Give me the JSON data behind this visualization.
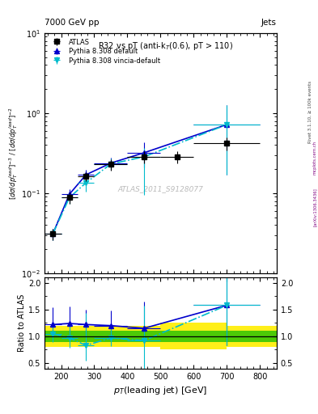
{
  "title_left": "7000 GeV pp",
  "title_right": "Jets",
  "plot_title": "R32 vs pT (anti-k_{T}(0.6), pT > 110)",
  "watermark": "ATLAS_2011_S9128077",
  "rivet_label": "Rivet 3.1.10, ≥ 100k events",
  "arxiv_label": "[arXiv:1306.3436]",
  "mcplots_label": "mcplots.cern.ch",
  "ylabel_ratio": "Ratio to ATLAS",
  "xlabel": "p_{T}(leading jet) [GeV]",
  "ylim_main": [
    0.01,
    10
  ],
  "ylim_ratio": [
    0.4,
    2.1
  ],
  "xlim": [
    150,
    850
  ],
  "atlas_x": [
    175,
    225,
    275,
    350,
    450,
    550,
    700
  ],
  "atlas_y": [
    0.031,
    0.088,
    0.162,
    0.23,
    0.285,
    0.285,
    0.42
  ],
  "atlas_ex": [
    25,
    25,
    25,
    50,
    50,
    50,
    100
  ],
  "atlas_ey": [
    0.005,
    0.014,
    0.022,
    0.038,
    0.05,
    0.05,
    0.08
  ],
  "pythia_default_x": [
    175,
    225,
    275,
    350,
    450,
    700
  ],
  "pythia_default_y": [
    0.031,
    0.097,
    0.17,
    0.238,
    0.32,
    0.72
  ],
  "pythia_default_ex": [
    25,
    25,
    25,
    50,
    50,
    100
  ],
  "pythia_default_ey": [
    0.005,
    0.016,
    0.028,
    0.042,
    0.11,
    0.55
  ],
  "pythia_vincia_x": [
    175,
    225,
    275,
    350,
    450,
    700
  ],
  "pythia_vincia_y": [
    0.031,
    0.088,
    0.135,
    0.232,
    0.285,
    0.72
  ],
  "pythia_vincia_ex": [
    25,
    25,
    25,
    50,
    50,
    100
  ],
  "pythia_vincia_ey_up": [
    0.005,
    0.014,
    0.03,
    0.038,
    0.08,
    0.55
  ],
  "pythia_vincia_ey_dn": [
    0.005,
    0.014,
    0.03,
    0.038,
    0.19,
    0.55
  ],
  "ratio_default_y": [
    1.22,
    1.24,
    1.22,
    1.2,
    1.15,
    1.58
  ],
  "ratio_default_ey_up": [
    0.32,
    0.32,
    0.28,
    0.28,
    0.5,
    1.75
  ],
  "ratio_default_ey_dn": [
    0.22,
    0.22,
    0.2,
    0.18,
    0.28,
    0.75
  ],
  "ratio_vincia_y": [
    1.05,
    0.97,
    0.83,
    0.97,
    0.92,
    1.58
  ],
  "ratio_vincia_ey_up": [
    0.22,
    0.3,
    0.6,
    0.25,
    0.65,
    1.75
  ],
  "ratio_vincia_ey_dn": [
    0.16,
    0.18,
    0.28,
    0.15,
    0.52,
    0.75
  ],
  "band_edges": [
    150,
    500,
    700,
    850
  ],
  "band_yellow_lo": [
    0.8,
    0.75,
    0.8
  ],
  "band_yellow_hi": [
    1.2,
    1.25,
    1.2
  ],
  "band_green_lo": [
    0.9,
    0.9,
    0.9
  ],
  "band_green_hi": [
    1.1,
    1.1,
    1.1
  ],
  "color_atlas": "#000000",
  "color_default": "#0000cc",
  "color_vincia": "#00bbcc",
  "color_green": "#00bb00",
  "color_yellow": "#ffee00",
  "legend_labels": [
    "ATLAS",
    "Pythia 8.308 default",
    "Pythia 8.308 vincia-default"
  ]
}
